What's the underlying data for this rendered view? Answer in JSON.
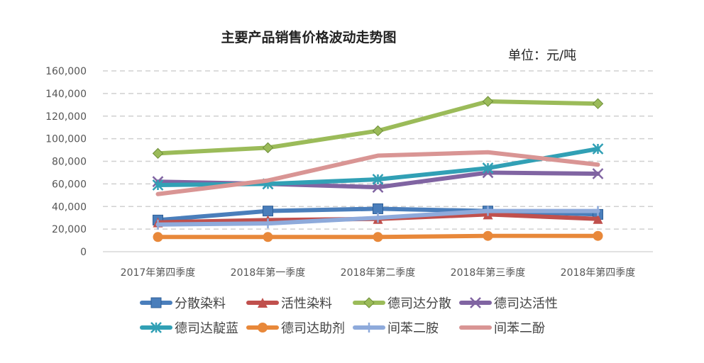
{
  "chart_data": {
    "type": "line",
    "title": "主要产品销售价格波动走势图",
    "unit_label": "单位：元/吨",
    "categories": [
      "2017年第四季度",
      "2018年第一季度",
      "2018年第二季度",
      "2018年第三季度",
      "2018年第四季度"
    ],
    "ylim": [
      0,
      160000
    ],
    "yticks": [
      "0",
      "20,000",
      "40,000",
      "60,000",
      "80,000",
      "100,000",
      "120,000",
      "140,000",
      "160,000"
    ],
    "grid": true,
    "legend_position": "bottom",
    "series": [
      {
        "name": "分散染料",
        "color": "#4a7ebb",
        "marker": "square",
        "values": [
          28000,
          36000,
          38000,
          36000,
          33000
        ]
      },
      {
        "name": "活性染料",
        "color": "#c0504d",
        "marker": "triangle",
        "values": [
          26000,
          28000,
          29000,
          33000,
          29000
        ]
      },
      {
        "name": "德司达分散",
        "color": "#9bbb59",
        "marker": "diamond",
        "values": [
          87000,
          92000,
          107000,
          133000,
          131000
        ]
      },
      {
        "name": "德司达活性",
        "color": "#8064a2",
        "marker": "x",
        "values": [
          62000,
          60000,
          57000,
          70000,
          69000
        ]
      },
      {
        "name": "德司达靛蓝",
        "color": "#31a0b5",
        "marker": "star",
        "values": [
          59000,
          60000,
          64000,
          74000,
          91000
        ]
      },
      {
        "name": "德司达助剂",
        "color": "#e8883a",
        "marker": "circle",
        "values": [
          13000,
          13000,
          13000,
          14000,
          14000
        ]
      },
      {
        "name": "间苯二胺",
        "color": "#8eaadb",
        "marker": "plus",
        "values": [
          24000,
          25000,
          30000,
          36000,
          36000
        ]
      },
      {
        "name": "间苯二酚",
        "color": "#d99594",
        "marker": "none",
        "values": [
          51000,
          63000,
          85000,
          88000,
          77000
        ]
      }
    ]
  }
}
